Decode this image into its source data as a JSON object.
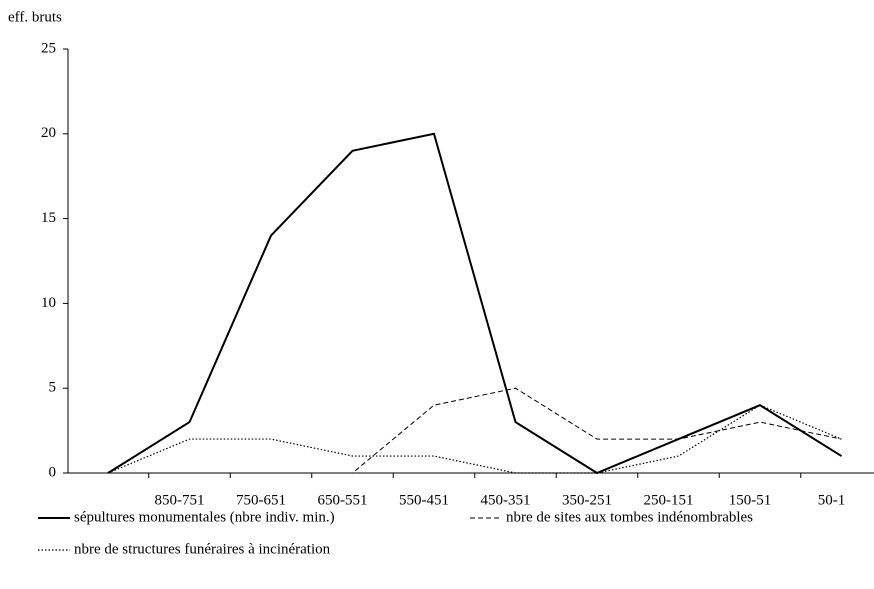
{
  "chart_data": {
    "type": "line",
    "y_label": "eff. bruts",
    "categories": [
      null,
      "850-751",
      "750-651",
      "650-551",
      "550-451",
      "450-351",
      "350-251",
      "250-151",
      "150-51",
      "50-1"
    ],
    "series": [
      {
        "name": "sépultures monumentales (nbre indiv. min.)",
        "color": "#000000",
        "style": "solid",
        "values": [
          0,
          3,
          14,
          19,
          20,
          3,
          0,
          2,
          4,
          1
        ]
      },
      {
        "name": "nbre de sites aux tombes indénombrables",
        "color": "#000000",
        "style": "dashed",
        "values": [
          0,
          0,
          0,
          0,
          4,
          5,
          2,
          2,
          3,
          2
        ]
      },
      {
        "name": "nbre de structures funéraires à incinération",
        "color": "#000000",
        "style": "dotted",
        "values": [
          0,
          2,
          2,
          1,
          1,
          0,
          0,
          1,
          4,
          2
        ]
      }
    ],
    "ylim": [
      0,
      25
    ],
    "yticks": [
      0,
      5,
      10,
      15,
      20,
      25
    ],
    "grid": false
  }
}
